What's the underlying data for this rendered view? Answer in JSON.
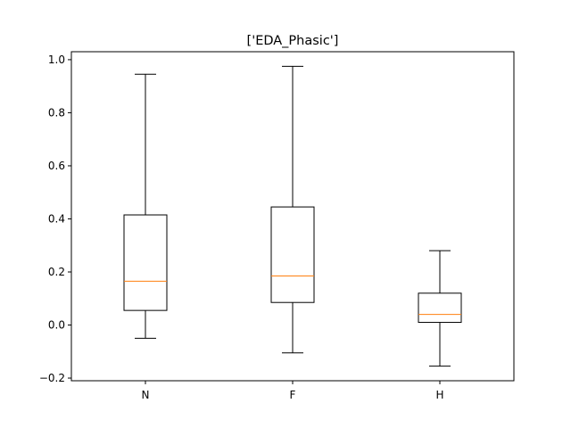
{
  "chart_data": {
    "type": "box",
    "title": "['EDA_Phasic']",
    "xlabel": "",
    "ylabel": "",
    "categories": [
      "N",
      "F",
      "H"
    ],
    "boxes": [
      {
        "category": "N",
        "whisker_low": -0.05,
        "q1": 0.055,
        "median": 0.165,
        "q3": 0.415,
        "whisker_high": 0.945
      },
      {
        "category": "F",
        "whisker_low": -0.105,
        "q1": 0.085,
        "median": 0.185,
        "q3": 0.445,
        "whisker_high": 0.975
      },
      {
        "category": "H",
        "whisker_low": -0.155,
        "q1": 0.01,
        "median": 0.04,
        "q3": 0.12,
        "whisker_high": 0.28
      }
    ],
    "ylim": [
      -0.21,
      1.03
    ],
    "yticks": [
      -0.2,
      0.0,
      0.2,
      0.4,
      0.6,
      0.8,
      1.0
    ],
    "ytick_labels": [
      "−0.2",
      "0.0",
      "0.2",
      "0.4",
      "0.6",
      "0.8",
      "1.0"
    ],
    "grid": false,
    "colors": {
      "box": "#000000",
      "median": "#ff7f0e",
      "whisker": "#000000",
      "axes": "#000000"
    }
  }
}
